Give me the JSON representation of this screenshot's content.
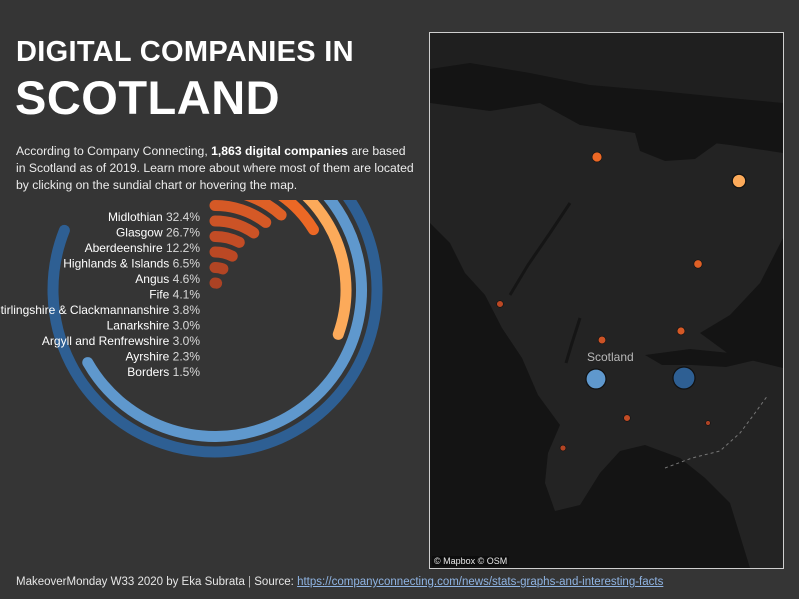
{
  "header": {
    "title_line1": "DIGITAL COMPANIES IN",
    "title_line2": "SCOTLAND"
  },
  "description": {
    "part1": "According to Company Connecting, ",
    "highlight": "1,863 digital companies",
    "part2": " are based in Scotland as of 2019. Learn more about where most of them are located by clicking on the sundial chart or hovering the map."
  },
  "chart_data": {
    "type": "radial-bar",
    "title": "",
    "series_name": "",
    "categories": [
      "Midlothian",
      "Glasgow",
      "Aberdeenshire",
      "Highlands & Islands",
      "Angus",
      "Fife",
      "Stirlingshire & Clackmannanshire",
      "Lanarkshire",
      "Argyll and Renfrewshire",
      "Ayrshire",
      "Borders"
    ],
    "values": [
      32.4,
      26.7,
      12.2,
      6.5,
      4.6,
      4.1,
      3.8,
      3.0,
      3.0,
      2.3,
      1.5
    ],
    "value_labels": [
      "32.4%",
      "26.7%",
      "12.2%",
      "6.5%",
      "4.6%",
      "4.1%",
      "3.8%",
      "3.0%",
      "3.0%",
      "2.3%",
      "1.5%"
    ],
    "max": 40,
    "colors": [
      "#2e5f93",
      "#5f98cd",
      "#fcaa5a",
      "#ec6825",
      "#de6026",
      "#d55926",
      "#cc5326",
      "#c24c25",
      "#bb4824",
      "#b34524",
      "#ab4224"
    ]
  },
  "map": {
    "region_label": "Scotland",
    "attribution": "© Mapbox © OSM",
    "points": [
      {
        "name": "Midlothian",
        "value": 32.4,
        "color": "#2e5f93"
      },
      {
        "name": "Glasgow",
        "value": 26.7,
        "color": "#5f98cd"
      },
      {
        "name": "Aberdeenshire",
        "value": 12.2,
        "color": "#fcaa5a"
      },
      {
        "name": "Highlands & Islands",
        "value": 6.5,
        "color": "#ec6825"
      },
      {
        "name": "Angus",
        "value": 4.6,
        "color": "#de6026"
      },
      {
        "name": "Fife",
        "value": 4.1,
        "color": "#d55926"
      },
      {
        "name": "Stirlingshire & Clackmannanshire",
        "value": 3.8,
        "color": "#cc5326"
      },
      {
        "name": "Lanarkshire",
        "value": 3.0,
        "color": "#c24c25"
      },
      {
        "name": "Argyll and Renfrewshire",
        "value": 3.0,
        "color": "#bb4824"
      },
      {
        "name": "Ayrshire",
        "value": 2.3,
        "color": "#b34524"
      },
      {
        "name": "Borders",
        "value": 1.5,
        "color": "#ab4224"
      }
    ]
  },
  "footer": {
    "credit": "MakeoverMonday W33 2020 by Eka Subrata",
    "separator": " | ",
    "source_label": "Source: ",
    "source_url": "https://companyconnecting.com/news/stats-graphs-and-interesting-facts"
  }
}
